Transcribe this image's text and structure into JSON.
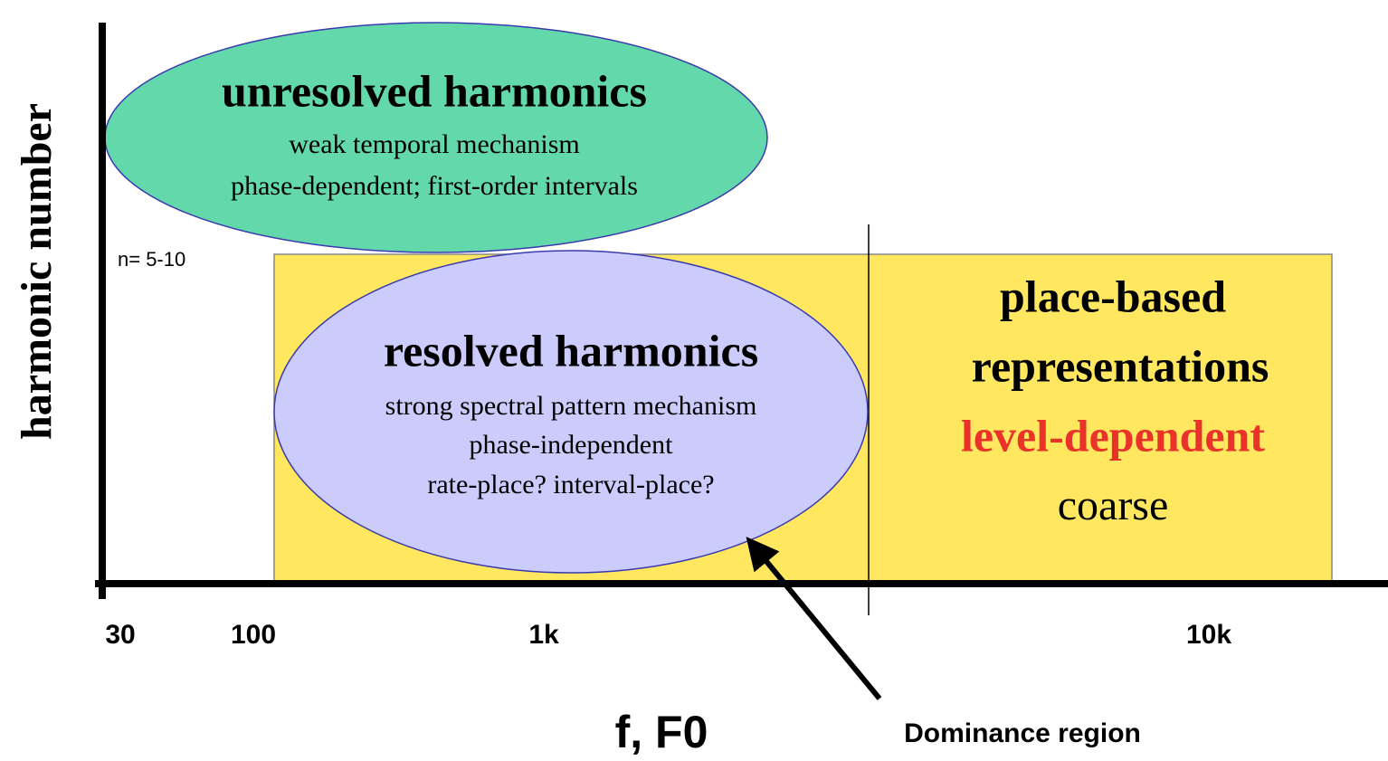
{
  "axes": {
    "y_label": "harmonic number",
    "x_label": "f, F0",
    "x_ticks": [
      "30",
      "100",
      "1k",
      "10k"
    ],
    "n_label": "n= 5-10"
  },
  "regions": [
    {
      "title": "unresolved harmonics",
      "lines": [
        "weak temporal mechanism",
        "phase-dependent; first-order intervals"
      ]
    },
    {
      "title": "resolved harmonics",
      "lines": [
        "strong spectral pattern mechanism",
        "phase-independent",
        "rate-place? interval-place?"
      ]
    },
    {
      "lines": [
        "place-based",
        "representations",
        "level-dependent",
        "coarse"
      ]
    }
  ],
  "annotation": "Dominance region"
}
